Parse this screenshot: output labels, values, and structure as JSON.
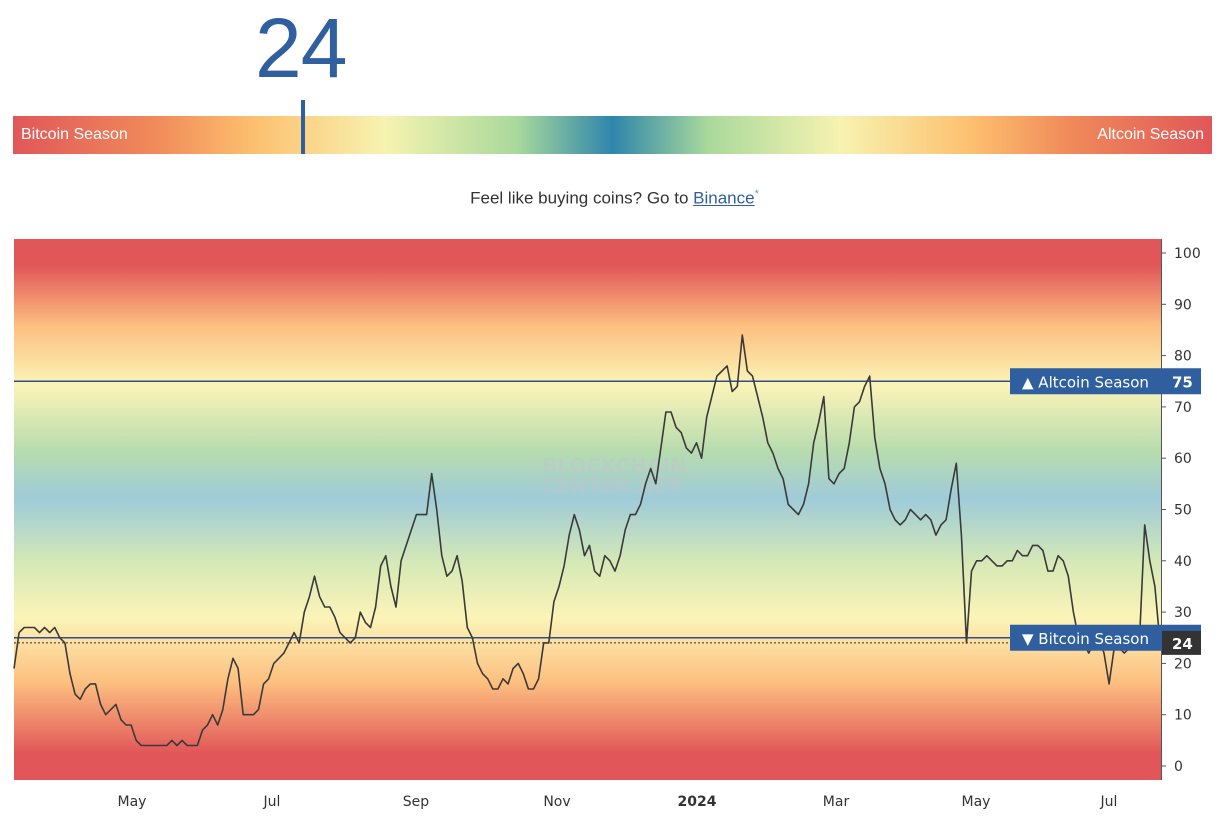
{
  "index": {
    "value": "24"
  },
  "gauge": {
    "left_label": "Bitcoin Season",
    "right_label": "Altcoin Season",
    "value": 24
  },
  "promo": {
    "prefix": "Feel like buying coins? Go to ",
    "link": "Binance",
    "suffix": "*"
  },
  "chart_data": {
    "type": "line",
    "watermark": [
      "BLOCKCHAIN",
      "CENTER.NET"
    ],
    "ylim": [
      0,
      100
    ],
    "yticks": [
      0,
      10,
      20,
      30,
      40,
      50,
      60,
      70,
      80,
      90,
      100
    ],
    "xticks": [
      "May",
      "Jul",
      "Sep",
      "Nov",
      "2024",
      "Mar",
      "May",
      "Jul"
    ],
    "thresholds": [
      {
        "label": "▲ Altcoin Season",
        "value": 75,
        "value_label": "75"
      },
      {
        "label": "▼ Bitcoin Season",
        "value": 25,
        "value_label": "25"
      }
    ],
    "current": {
      "value": 24,
      "label": "24"
    },
    "series": [
      {
        "values": [
          19,
          26,
          27,
          27,
          27,
          26,
          27,
          26,
          27,
          25,
          24,
          18,
          14,
          13,
          15,
          16,
          16,
          12,
          10,
          11,
          12,
          9,
          8,
          8,
          5,
          4,
          4,
          4,
          4,
          4,
          4,
          5,
          4,
          5,
          4,
          4,
          4,
          7,
          8,
          10,
          8,
          11,
          17,
          21,
          19,
          10,
          10,
          10,
          11,
          16,
          17,
          20,
          21,
          22,
          24,
          26,
          24,
          30,
          33,
          37,
          33,
          31,
          31,
          29,
          26,
          25,
          24,
          25,
          30,
          28,
          27,
          31,
          39,
          41,
          35,
          31,
          40,
          43,
          46,
          49,
          49,
          49,
          57,
          50,
          41,
          37,
          38,
          41,
          36,
          27,
          25,
          20,
          18,
          17,
          15,
          15,
          17,
          16,
          19,
          20,
          18,
          15,
          15,
          17,
          24,
          24,
          32,
          35,
          39,
          45,
          49,
          46,
          41,
          43,
          38,
          37,
          41,
          40,
          38,
          41,
          46,
          49,
          49,
          51,
          55,
          58,
          55,
          62,
          69,
          69,
          66,
          65,
          62,
          61,
          63,
          60,
          68,
          72,
          76,
          77,
          78,
          73,
          74,
          84,
          77,
          76,
          72,
          68,
          63,
          61,
          58,
          56,
          51,
          50,
          49,
          51,
          55,
          63,
          67,
          72,
          56,
          55,
          57,
          58,
          63,
          70,
          71,
          74,
          76,
          64,
          58,
          55,
          50,
          48,
          47,
          48,
          50,
          49,
          48,
          49,
          48,
          45,
          47,
          48,
          54,
          59,
          45,
          24,
          38,
          40,
          40,
          41,
          40,
          39,
          39,
          40,
          40,
          42,
          41,
          41,
          43,
          43,
          42,
          38,
          38,
          41,
          40,
          37,
          30,
          25,
          24,
          22,
          24,
          25,
          22,
          16,
          23,
          23,
          22,
          23,
          24,
          25,
          47,
          40,
          35,
          24
        ]
      }
    ]
  }
}
